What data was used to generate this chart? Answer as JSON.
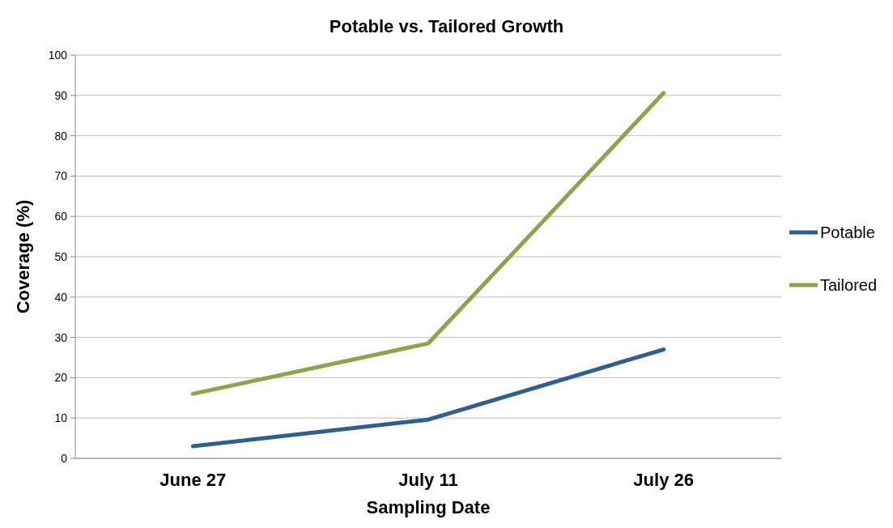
{
  "chart_data": {
    "type": "line",
    "title": "Potable vs. Tailored Growth",
    "xlabel": "Sampling Date",
    "ylabel": "Coverage (%)",
    "categories": [
      "June 27",
      "July 11",
      "July 26"
    ],
    "series": [
      {
        "name": "Potable",
        "color": "#2e5f8f",
        "values": [
          3,
          9.6,
          27
        ]
      },
      {
        "name": "Tailored",
        "color": "#8aa64a",
        "values": [
          16,
          28.5,
          90.6
        ]
      }
    ],
    "ylim": [
      0,
      100
    ],
    "yticks": [
      0,
      10,
      20,
      30,
      40,
      50,
      60,
      70,
      80,
      90,
      100
    ],
    "grid": "y",
    "legend": "right",
    "marker": "none",
    "line_style": "solid"
  }
}
